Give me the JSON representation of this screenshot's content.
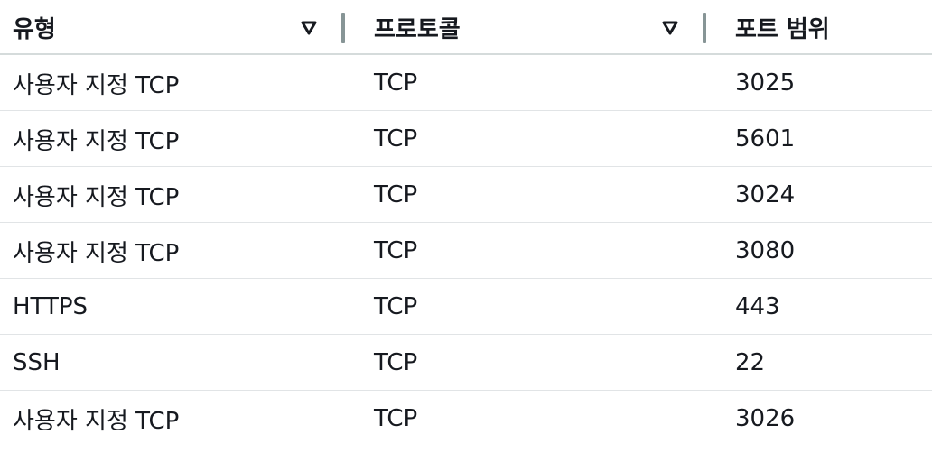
{
  "table": {
    "columns": [
      {
        "label": "유형",
        "sortable": true
      },
      {
        "label": "프로토콜",
        "sortable": true
      },
      {
        "label": "포트 범위",
        "sortable": false
      }
    ],
    "rows": [
      {
        "type": "사용자 지정 TCP",
        "protocol": "TCP",
        "port_range": "3025"
      },
      {
        "type": "사용자 지정 TCP",
        "protocol": "TCP",
        "port_range": "5601"
      },
      {
        "type": "사용자 지정 TCP",
        "protocol": "TCP",
        "port_range": "3024"
      },
      {
        "type": "사용자 지정 TCP",
        "protocol": "TCP",
        "port_range": "3080"
      },
      {
        "type": "HTTPS",
        "protocol": "TCP",
        "port_range": "443"
      },
      {
        "type": "SSH",
        "protocol": "TCP",
        "port_range": "22"
      },
      {
        "type": "사용자 지정 TCP",
        "protocol": "TCP",
        "port_range": "3026"
      }
    ]
  },
  "icons": {
    "sort": "sort-descending-triangle-icon",
    "divider": "column-resize-handle"
  },
  "colors": {
    "text": "#16191f",
    "divider": "#879596",
    "header_border": "#d5dbdb",
    "row_border": "#e1e4e6"
  }
}
